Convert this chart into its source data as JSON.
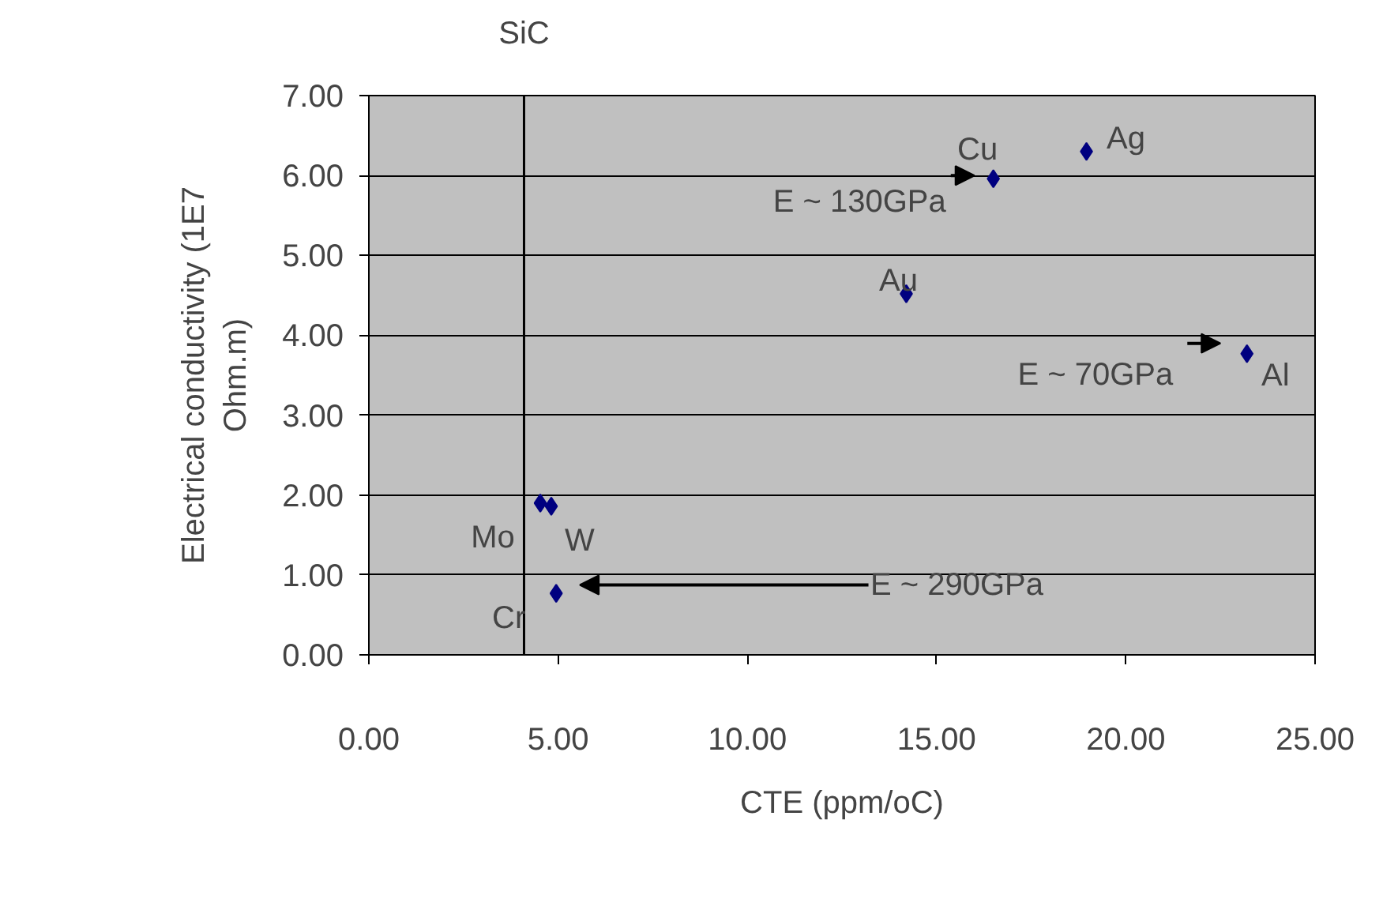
{
  "chart_data": {
    "type": "scatter",
    "xlabel": "CTE (ppm/oC)",
    "ylabel": "Electrical conductivity (1E7\nOhm.m)",
    "x": [
      16.5,
      18.96,
      14.2,
      23.2,
      4.53,
      4.82,
      4.95
    ],
    "values": [
      5.96,
      6.3,
      4.52,
      3.77,
      1.9,
      1.86,
      0.77
    ],
    "color": "#000080",
    "marker": "diamond",
    "xlim": [
      0,
      25
    ],
    "xticks": [
      {
        "value": 0,
        "label": "0.00"
      },
      {
        "value": 5,
        "label": "5.00"
      },
      {
        "value": 10,
        "label": "10.00"
      },
      {
        "value": 15,
        "label": "15.00"
      },
      {
        "value": 20,
        "label": "20.00"
      },
      {
        "value": 25,
        "label": "25.00"
      }
    ],
    "ylim": [
      0,
      7
    ],
    "yticks": [
      {
        "value": 0,
        "label": "0.00"
      },
      {
        "value": 1,
        "label": "1.00"
      },
      {
        "value": 2,
        "label": "2.00"
      },
      {
        "value": 3,
        "label": "3.00"
      },
      {
        "value": 4,
        "label": "4.00"
      },
      {
        "value": 5,
        "label": "5.00"
      },
      {
        "value": 6,
        "label": "6.00"
      },
      {
        "value": 7,
        "label": "7.00"
      }
    ],
    "grid": "y",
    "ref_lines": [
      {
        "axis": "x",
        "value": 4.1,
        "label": "SiC",
        "color": "#000000"
      }
    ],
    "annotations": [
      {
        "text": "Cu",
        "x": 16.5,
        "y": 5.96
      },
      {
        "text": "Ag",
        "x": 18.96,
        "y": 6.3
      },
      {
        "text": "Au",
        "x": 14.2,
        "y": 4.52
      },
      {
        "text": "Al",
        "x": 23.2,
        "y": 3.77
      },
      {
        "text": "Mo",
        "x": 4.53,
        "y": 1.9
      },
      {
        "text": "W",
        "x": 4.82,
        "y": 1.86
      },
      {
        "text": "Cr",
        "x": 4.95,
        "y": 0.77
      },
      "E ~ 130GPa",
      "E ~ 70GPa",
      "E ~ 290GPa"
    ]
  }
}
